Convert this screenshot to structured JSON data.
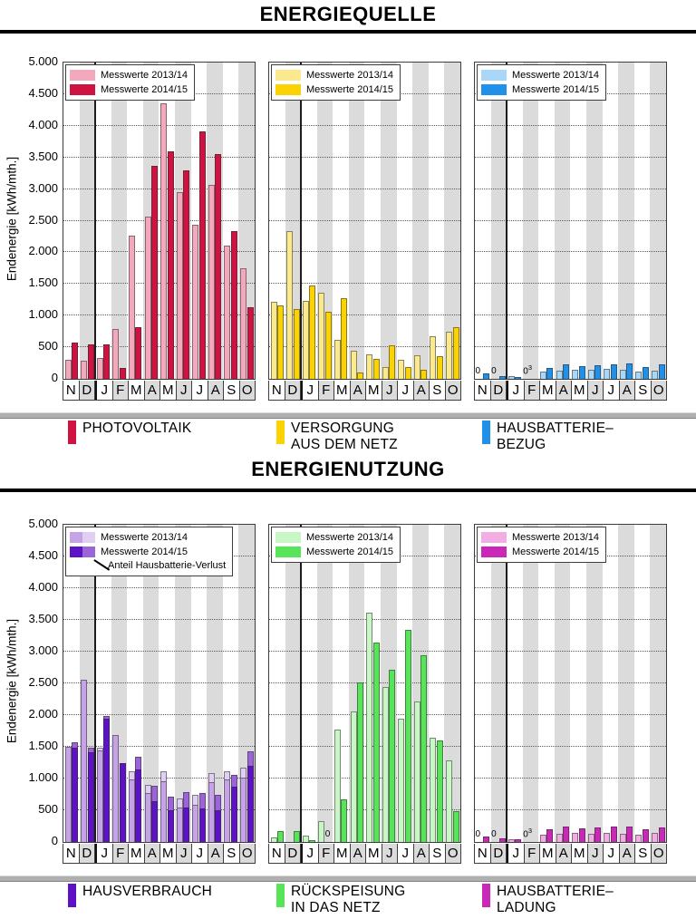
{
  "sections": [
    {
      "title": "ENERGIEQUELLE",
      "ylabel": "Endenergie [kWh/mth.]",
      "yticks": [
        "5.000",
        "4.500",
        "4.000",
        "3.500",
        "3.000",
        "2.500",
        "2.000",
        "1.500",
        "1.000",
        "500",
        "0"
      ],
      "legend_items": [
        {
          "label": "PHOTOVOLTAIK",
          "color": "#CE1342"
        },
        {
          "label": "VERSORGUNG\nAUS DEM NETZ",
          "color": "#FBD303"
        },
        {
          "label": "HAUSBATTERIE–\nBEZUG",
          "color": "#2090E8"
        }
      ]
    },
    {
      "title": "ENERGIENUTZUNG",
      "ylabel": "Endenergie [kWh/mth.]",
      "yticks": [
        "5.000",
        "4.500",
        "4.000",
        "3.500",
        "3.000",
        "2.500",
        "2.000",
        "1.500",
        "1.000",
        "500",
        "0"
      ],
      "legend_items": [
        {
          "label": "HAUSVERBRAUCH",
          "color": "#5D13C5"
        },
        {
          "label": "RÜCKSPEISUNG\nIN DAS NETZ",
          "color": "#57E459"
        },
        {
          "label": "HAUSBATTERIE–\nLADUNG",
          "color": "#CA28B9"
        }
      ]
    }
  ],
  "chart_data": [
    {
      "type": "bar",
      "title": "PHOTOVOLTAIK",
      "section": "ENERGIEQUELLE",
      "ylabel": "Endenergie [kWh/mth.]",
      "ylim": [
        0,
        5000
      ],
      "grid": true,
      "legend_position": "top-left",
      "categories": [
        "N",
        "D",
        "J",
        "F",
        "M",
        "A",
        "M",
        "J",
        "J",
        "A",
        "S",
        "O"
      ],
      "series": [
        {
          "name": "Messwerte 2013/14",
          "color": "#F3A8BB",
          "values": [
            300,
            280,
            330,
            790,
            2260,
            2560,
            4350,
            2950,
            2440,
            3060,
            2100,
            1750
          ]
        },
        {
          "name": "Messwerte 2014/15",
          "color": "#CE1342",
          "values": [
            580,
            540,
            540,
            170,
            820,
            3370,
            3600,
            3300,
            3910,
            3560,
            2330,
            1130
          ]
        }
      ],
      "annotations": []
    },
    {
      "type": "bar",
      "title": "VERSORGUNG AUS DEM NETZ",
      "section": "ENERGIEQUELLE",
      "ylabel": "Endenergie [kWh/mth.]",
      "ylim": [
        0,
        5000
      ],
      "grid": true,
      "legend_position": "top-left",
      "categories": [
        "N",
        "D",
        "J",
        "F",
        "M",
        "A",
        "M",
        "J",
        "J",
        "A",
        "S",
        "O"
      ],
      "series": [
        {
          "name": "Messwerte 2013/14",
          "color": "#FBE98E",
          "values": [
            1220,
            2330,
            1230,
            1360,
            610,
            450,
            390,
            190,
            300,
            370,
            680,
            750
          ]
        },
        {
          "name": "Messwerte 2014/15",
          "color": "#FBD303",
          "values": [
            1160,
            1110,
            1480,
            1060,
            1270,
            100,
            320,
            530,
            180,
            150,
            360,
            820
          ]
        }
      ],
      "annotations": []
    },
    {
      "type": "bar",
      "title": "HAUSBATTERIE-BEZUG",
      "section": "ENERGIEQUELLE",
      "ylabel": "Endenergie [kWh/mth.]",
      "ylim": [
        0,
        5000
      ],
      "grid": true,
      "legend_position": "top-left",
      "categories": [
        "N",
        "D",
        "J",
        "F",
        "M",
        "A",
        "M",
        "J",
        "J",
        "A",
        "S",
        "O"
      ],
      "series": [
        {
          "name": "Messwerte 2013/14",
          "color": "#A8D7F7",
          "values": [
            0,
            0,
            40,
            0,
            120,
            130,
            145,
            145,
            155,
            145,
            120,
            135
          ]
        },
        {
          "name": "Messwerte 2014/15",
          "color": "#2090E8",
          "values": [
            80,
            50,
            30,
            0,
            170,
            230,
            200,
            215,
            230,
            240,
            190,
            230
          ]
        }
      ],
      "annotations": [
        {
          "cat": 0,
          "slot": 0,
          "text": "0"
        },
        {
          "cat": 1,
          "slot": 0,
          "text": "0"
        },
        {
          "cat": 3,
          "slot": 0,
          "text": "0",
          "sup": "3"
        }
      ]
    },
    {
      "type": "bar",
      "title": "HAUSVERBRAUCH",
      "section": "ENERGIENUTZUNG",
      "ylabel": "Endenergie [kWh/mth.]",
      "ylim": [
        0,
        5000
      ],
      "grid": true,
      "legend_position": "top-left",
      "legend_note": "Anteil Hausbatterie-Verlust",
      "categories": [
        "N",
        "D",
        "J",
        "F",
        "M",
        "A",
        "M",
        "J",
        "J",
        "A",
        "S",
        "O"
      ],
      "series": [
        {
          "name": "Messwerte 2013/14",
          "color": "#C6A3E6",
          "cap_color": "#E0CEF3",
          "values": [
            1500,
            2560,
            1480,
            1690,
            1110,
            900,
            1110,
            680,
            740,
            1080,
            1110,
            1170
          ],
          "caps": [
            0,
            0,
            40,
            0,
            120,
            135,
            150,
            135,
            150,
            135,
            120,
            150
          ]
        },
        {
          "name": "Messwerte 2014/15",
          "color": "#5D13C5",
          "cap_color": "#9C64D9",
          "values": [
            1570,
            1480,
            1990,
            1240,
            1350,
            890,
            720,
            780,
            770,
            740,
            1060,
            1430
          ],
          "caps": [
            90,
            60,
            40,
            0,
            205,
            240,
            215,
            235,
            245,
            245,
            195,
            235
          ]
        }
      ],
      "annotations": []
    },
    {
      "type": "bar",
      "title": "RÜCKSPEISUNG IN DAS NETZ",
      "section": "ENERGIENUTZUNG",
      "ylabel": "Endenergie [kWh/mth.]",
      "ylim": [
        0,
        5000
      ],
      "grid": true,
      "legend_position": "top-left",
      "categories": [
        "N",
        "D",
        "J",
        "F",
        "M",
        "A",
        "M",
        "J",
        "J",
        "A",
        "S",
        "O"
      ],
      "series": [
        {
          "name": "Messwerte 2013/14",
          "color": "#C9F6C5",
          "values": [
            70,
            0,
            100,
            335,
            1770,
            2060,
            3620,
            2450,
            1950,
            2220,
            1640,
            1290
          ]
        },
        {
          "name": "Messwerte 2014/15",
          "color": "#57E459",
          "values": [
            170,
            170,
            25,
            0,
            670,
            2520,
            3150,
            2720,
            3340,
            2950,
            1600,
            480
          ]
        }
      ],
      "annotations": [
        {
          "cat": 3,
          "slot": 1,
          "text": "0"
        }
      ]
    },
    {
      "type": "bar",
      "title": "HAUSBATTERIE-LADUNG",
      "section": "ENERGIENUTZUNG",
      "ylabel": "Endenergie [kWh/mth.]",
      "ylim": [
        0,
        5000
      ],
      "grid": true,
      "legend_position": "top-left",
      "categories": [
        "N",
        "D",
        "J",
        "F",
        "M",
        "A",
        "M",
        "J",
        "J",
        "A",
        "S",
        "O"
      ],
      "series": [
        {
          "name": "Messwerte 2013/14",
          "color": "#F2ADE2",
          "values": [
            0,
            0,
            40,
            0,
            120,
            135,
            150,
            135,
            150,
            135,
            120,
            150
          ]
        },
        {
          "name": "Messwerte 2014/15",
          "color": "#CA28B9",
          "values": [
            90,
            60,
            40,
            0,
            205,
            240,
            215,
            235,
            245,
            245,
            195,
            235
          ]
        }
      ],
      "annotations": [
        {
          "cat": 0,
          "slot": 0,
          "text": "0"
        },
        {
          "cat": 1,
          "slot": 0,
          "text": "0"
        },
        {
          "cat": 3,
          "slot": 0,
          "text": "0",
          "sup": "3"
        }
      ]
    }
  ]
}
